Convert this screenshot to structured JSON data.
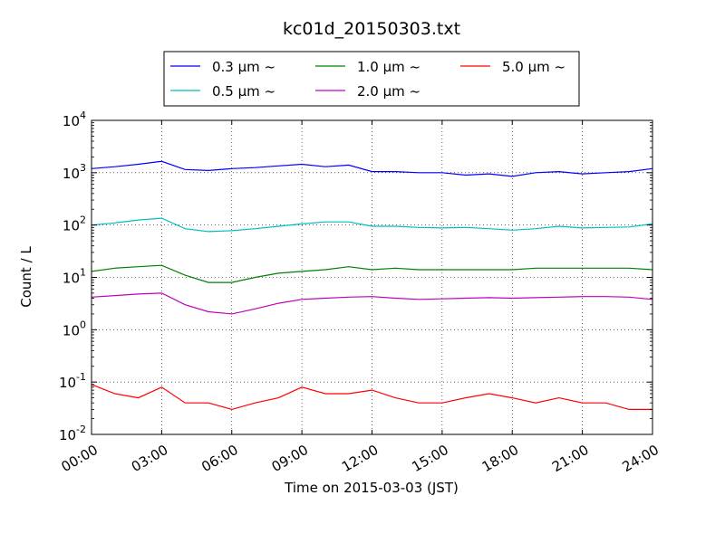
{
  "chart_data": {
    "type": "line",
    "title": "kc01d_20150303.txt",
    "xlabel": "Time on 2015-03-03 (JST)",
    "ylabel": "Count / L",
    "yscale": "log",
    "xlim": [
      "00:00",
      "24:00"
    ],
    "ylim": [
      0.01,
      10000
    ],
    "grid": true,
    "legend_position": "top-center",
    "x_tick_labels": [
      "00:00",
      "03:00",
      "06:00",
      "09:00",
      "12:00",
      "15:00",
      "18:00",
      "21:00",
      "24:00"
    ],
    "y_tick_labels": [
      {
        "base": "10",
        "exp": "-2"
      },
      {
        "base": "10",
        "exp": "-1"
      },
      {
        "base": "10",
        "exp": "0"
      },
      {
        "base": "10",
        "exp": "1"
      },
      {
        "base": "10",
        "exp": "2"
      },
      {
        "base": "10",
        "exp": "3"
      },
      {
        "base": "10",
        "exp": "4"
      }
    ],
    "series": [
      {
        "name": "0.3 µm ~",
        "color": "#0000ff",
        "x": [
          "00:00",
          "01:00",
          "02:00",
          "03:00",
          "04:00",
          "05:00",
          "06:00",
          "07:00",
          "08:00",
          "09:00",
          "10:00",
          "11:00",
          "12:00",
          "13:00",
          "14:00",
          "15:00",
          "16:00",
          "17:00",
          "18:00",
          "19:00",
          "20:00",
          "21:00",
          "22:00",
          "23:00",
          "24:00"
        ],
        "values": [
          1200,
          1300,
          1450,
          1650,
          1150,
          1100,
          1200,
          1250,
          1350,
          1450,
          1300,
          1400,
          1050,
          1050,
          1000,
          1000,
          900,
          950,
          850,
          1000,
          1050,
          950,
          1000,
          1050,
          1200
        ]
      },
      {
        "name": "0.5 µm ~",
        "color": "#00bfbf",
        "x": [
          "00:00",
          "01:00",
          "02:00",
          "03:00",
          "04:00",
          "05:00",
          "06:00",
          "07:00",
          "08:00",
          "09:00",
          "10:00",
          "11:00",
          "12:00",
          "13:00",
          "14:00",
          "15:00",
          "16:00",
          "17:00",
          "18:00",
          "19:00",
          "20:00",
          "21:00",
          "22:00",
          "23:00",
          "24:00"
        ],
        "values": [
          100,
          110,
          125,
          135,
          85,
          75,
          78,
          85,
          95,
          105,
          115,
          115,
          95,
          95,
          90,
          88,
          90,
          85,
          80,
          85,
          95,
          88,
          90,
          92,
          105
        ]
      },
      {
        "name": "1.0 µm ~",
        "color": "#008000",
        "x": [
          "00:00",
          "01:00",
          "02:00",
          "03:00",
          "04:00",
          "05:00",
          "06:00",
          "07:00",
          "08:00",
          "09:00",
          "10:00",
          "11:00",
          "12:00",
          "13:00",
          "14:00",
          "15:00",
          "16:00",
          "17:00",
          "18:00",
          "19:00",
          "20:00",
          "21:00",
          "22:00",
          "23:00",
          "24:00"
        ],
        "values": [
          13,
          15,
          16,
          17,
          11,
          8,
          8,
          10,
          12,
          13,
          14,
          16,
          14,
          15,
          14,
          14,
          14,
          14,
          14,
          15,
          15,
          15,
          15,
          15,
          14
        ]
      },
      {
        "name": "2.0 µm ~",
        "color": "#bf00bf",
        "x": [
          "00:00",
          "01:00",
          "02:00",
          "03:00",
          "04:00",
          "05:00",
          "06:00",
          "07:00",
          "08:00",
          "09:00",
          "10:00",
          "11:00",
          "12:00",
          "13:00",
          "14:00",
          "15:00",
          "16:00",
          "17:00",
          "18:00",
          "19:00",
          "20:00",
          "21:00",
          "22:00",
          "23:00",
          "24:00"
        ],
        "values": [
          4.2,
          4.5,
          4.8,
          5.0,
          3.0,
          2.2,
          2.0,
          2.5,
          3.2,
          3.8,
          4.0,
          4.2,
          4.3,
          4.0,
          3.8,
          3.9,
          4.0,
          4.1,
          4.0,
          4.1,
          4.2,
          4.3,
          4.3,
          4.2,
          3.8
        ]
      },
      {
        "name": "5.0 µm ~",
        "color": "#ff0000",
        "x": [
          "00:00",
          "01:00",
          "02:00",
          "03:00",
          "04:00",
          "05:00",
          "06:00",
          "07:00",
          "08:00",
          "09:00",
          "10:00",
          "11:00",
          "12:00",
          "13:00",
          "14:00",
          "15:00",
          "16:00",
          "17:00",
          "18:00",
          "19:00",
          "20:00",
          "21:00",
          "22:00",
          "23:00",
          "24:00"
        ],
        "values": [
          0.09,
          0.06,
          0.05,
          0.08,
          0.04,
          0.04,
          0.03,
          0.04,
          0.05,
          0.08,
          0.06,
          0.06,
          0.07,
          0.05,
          0.04,
          0.04,
          0.05,
          0.06,
          0.05,
          0.04,
          0.05,
          0.04,
          0.04,
          0.03,
          0.03
        ]
      }
    ]
  }
}
